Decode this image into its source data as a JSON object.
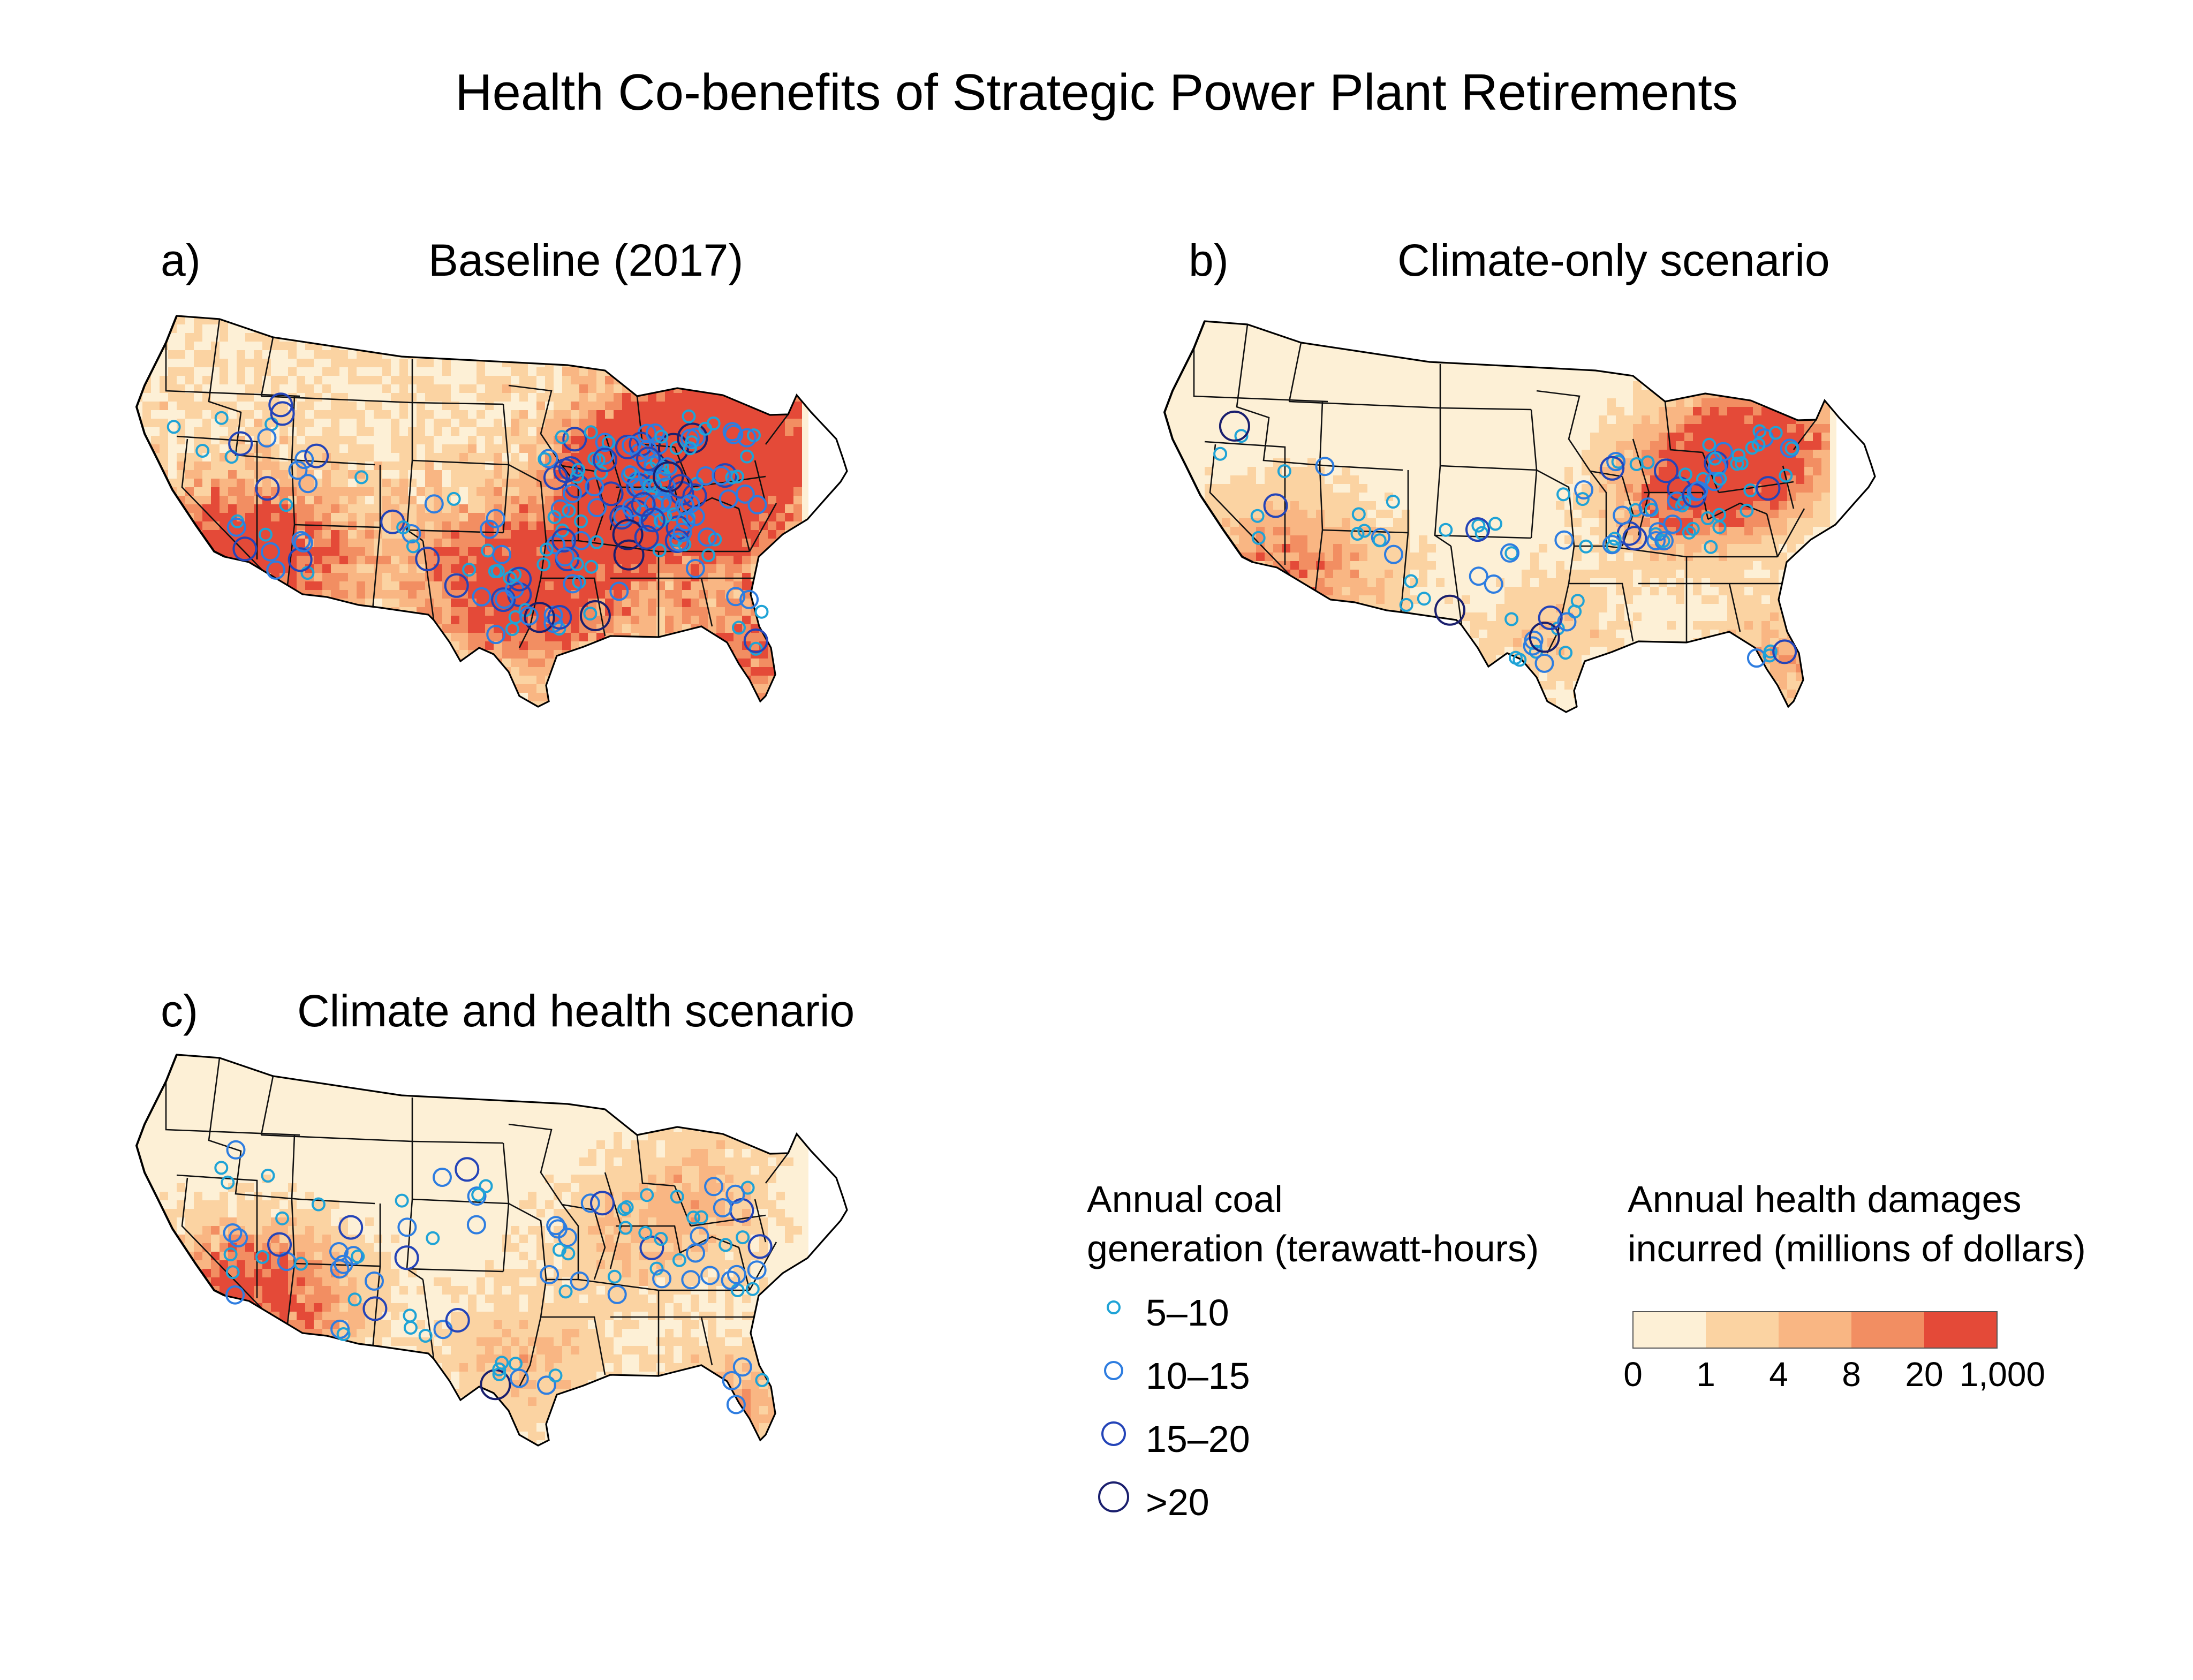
{
  "title": "Health Co-benefits of Strategic Power Plant Retirements",
  "panels": [
    {
      "letter": "a)",
      "title": "Baseline (2017)",
      "level": 3
    },
    {
      "letter": "b)",
      "title": "Climate-only scenario",
      "level": 1
    },
    {
      "letter": "c)",
      "title": "Climate and health scenario",
      "level": 2
    }
  ],
  "legend_circles": {
    "title_line1": "Annual coal",
    "title_line2": "generation (terawatt-hours)",
    "items": [
      {
        "label": "5–10",
        "color": "#1fa3d6"
      },
      {
        "label": "10–15",
        "color": "#2e7de0"
      },
      {
        "label": "15–20",
        "color": "#2444b8"
      },
      {
        "label": ">20",
        "color": "#1a1f6e"
      }
    ]
  },
  "legend_colors": {
    "title_line1": "Annual health damages",
    "title_line2": "incurred (millions of dollars)",
    "bins": [
      "#fdf0d6",
      "#fbd3a2",
      "#f9b683",
      "#f28e62",
      "#e44a38"
    ],
    "ticks": [
      "0",
      "1",
      "4",
      "8",
      "20",
      "1,000"
    ]
  },
  "colors": {
    "state_border": "#111111",
    "coast": "#000000"
  }
}
